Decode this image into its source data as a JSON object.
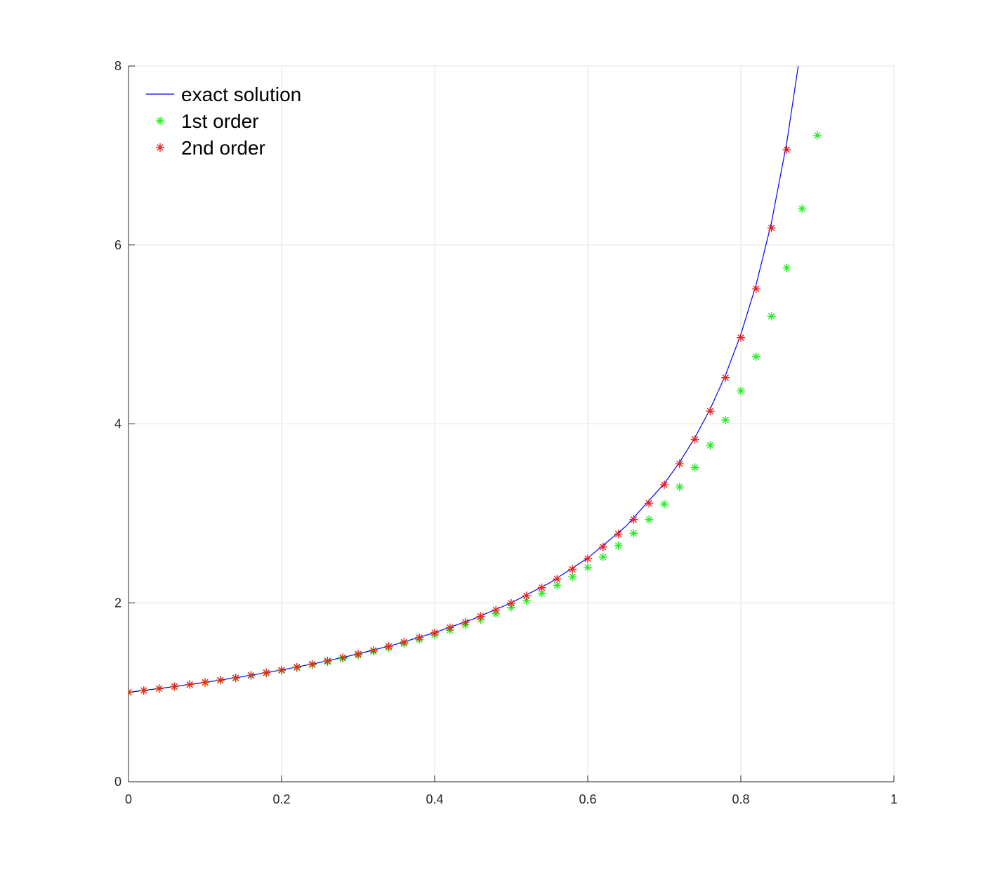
{
  "chart_data": {
    "type": "line",
    "xlim": [
      0,
      1
    ],
    "ylim": [
      0,
      8
    ],
    "xticks": [
      0,
      0.2,
      0.4,
      0.6,
      0.8,
      1
    ],
    "yticks": [
      0,
      2,
      4,
      6,
      8
    ],
    "grid": true,
    "legend": "upper-left",
    "series": [
      {
        "name": "exact solution",
        "color": "#0000ff",
        "mode": "line",
        "x": [
          0,
          0.05,
          0.1,
          0.15,
          0.2,
          0.25,
          0.3,
          0.35,
          0.4,
          0.45,
          0.5,
          0.55,
          0.6,
          0.65,
          0.7,
          0.72,
          0.74,
          0.76,
          0.78,
          0.8,
          0.82,
          0.84,
          0.86,
          0.875
        ],
        "values": [
          1,
          1.053,
          1.111,
          1.176,
          1.25,
          1.333,
          1.429,
          1.538,
          1.667,
          1.818,
          2,
          2.222,
          2.5,
          2.857,
          3.333,
          3.571,
          3.846,
          4.167,
          4.545,
          5,
          5.556,
          6.25,
          7.143,
          8
        ]
      },
      {
        "name": "1st order",
        "color": "#22ee22",
        "mode": "marker",
        "x": [
          0,
          0.02,
          0.04,
          0.06,
          0.08,
          0.1,
          0.12,
          0.14,
          0.16,
          0.18,
          0.2,
          0.22,
          0.24,
          0.26,
          0.28,
          0.3,
          0.32,
          0.34,
          0.36,
          0.38,
          0.4,
          0.42,
          0.44,
          0.46,
          0.48,
          0.5,
          0.52,
          0.54,
          0.56,
          0.58,
          0.6,
          0.62,
          0.64,
          0.66,
          0.68,
          0.7,
          0.72,
          0.74,
          0.76,
          0.78,
          0.8,
          0.82,
          0.84,
          0.86,
          0.88,
          0.9
        ],
        "values": [
          1,
          1.02,
          1.041,
          1.062,
          1.085,
          1.109,
          1.133,
          1.159,
          1.186,
          1.214,
          1.243,
          1.274,
          1.307,
          1.341,
          1.377,
          1.415,
          1.455,
          1.497,
          1.542,
          1.589,
          1.64,
          1.694,
          1.751,
          1.812,
          1.878,
          1.949,
          2.025,
          2.107,
          2.195,
          2.292,
          2.397,
          2.512,
          2.638,
          2.777,
          2.931,
          3.103,
          3.296,
          3.513,
          3.76,
          4.043,
          4.369,
          4.751,
          5.203,
          5.744,
          6.404,
          7.224
        ]
      },
      {
        "name": "2nd order",
        "color": "#ee2222",
        "mode": "marker",
        "x": [
          0,
          0.02,
          0.04,
          0.06,
          0.08,
          0.1,
          0.12,
          0.14,
          0.16,
          0.18,
          0.2,
          0.22,
          0.24,
          0.26,
          0.28,
          0.3,
          0.32,
          0.34,
          0.36,
          0.38,
          0.4,
          0.42,
          0.44,
          0.46,
          0.48,
          0.5,
          0.52,
          0.54,
          0.56,
          0.58,
          0.6,
          0.62,
          0.64,
          0.66,
          0.68,
          0.7,
          0.72,
          0.74,
          0.76,
          0.78,
          0.8,
          0.82,
          0.84,
          0.86
        ],
        "values": [
          1,
          1.02,
          1.042,
          1.064,
          1.087,
          1.111,
          1.136,
          1.162,
          1.19,
          1.219,
          1.249,
          1.281,
          1.315,
          1.351,
          1.388,
          1.427,
          1.469,
          1.514,
          1.561,
          1.611,
          1.665,
          1.722,
          1.783,
          1.849,
          1.92,
          1.996,
          2.079,
          2.169,
          2.267,
          2.375,
          2.493,
          2.624,
          2.769,
          2.931,
          3.113,
          3.319,
          3.555,
          3.827,
          4.143,
          4.517,
          4.964,
          5.51,
          6.19,
          7.064
        ]
      }
    ]
  }
}
